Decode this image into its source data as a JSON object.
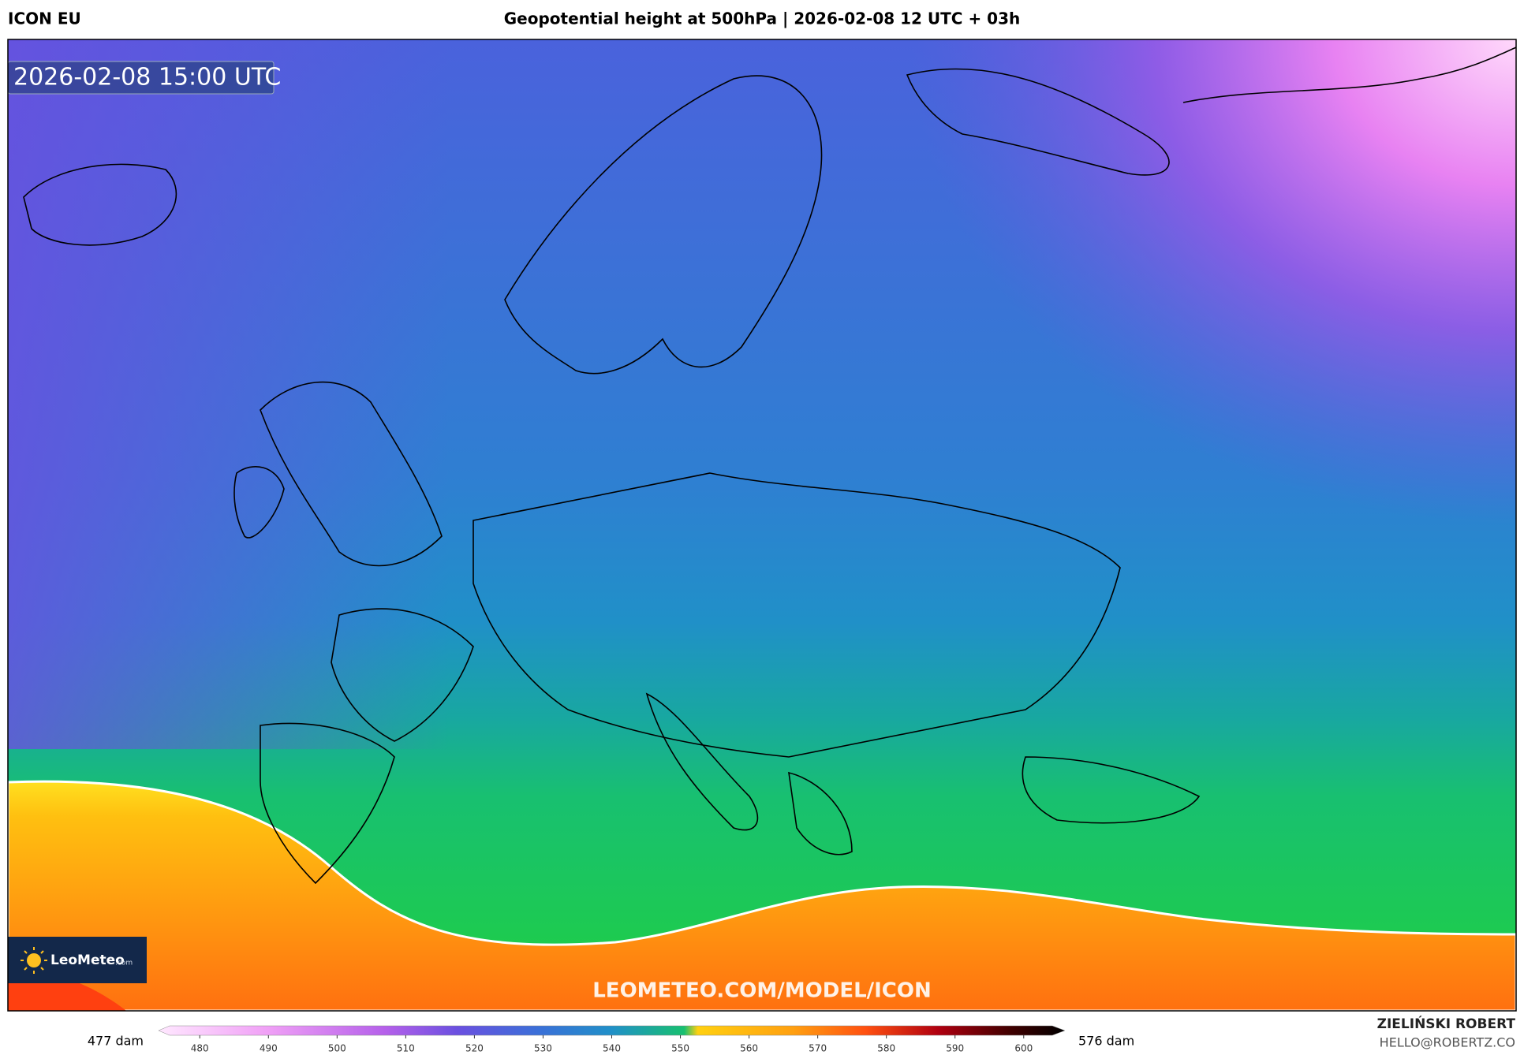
{
  "header": {
    "model": "ICON EU",
    "title": "Geopotential height at 500hPa | 2026-02-08 12 UTC + 03h"
  },
  "map": {
    "timestamp": "2026-02-08 15:00 UTC",
    "watermark": "LEOMETEO.COM/MODEL/ICON"
  },
  "logo": {
    "name": "LeoMeteo",
    "suffix": ".com"
  },
  "colorbar": {
    "min_label": "477 dam",
    "max_label": "576 dam",
    "range": [
      474,
      606
    ],
    "ticks": [
      480,
      490,
      500,
      510,
      520,
      530,
      540,
      550,
      560,
      570,
      580,
      590,
      600
    ]
  },
  "credit": {
    "name": "ZIELIŃSKI ROBERT",
    "email": "HELLO@ROBERTZ.CO"
  }
}
